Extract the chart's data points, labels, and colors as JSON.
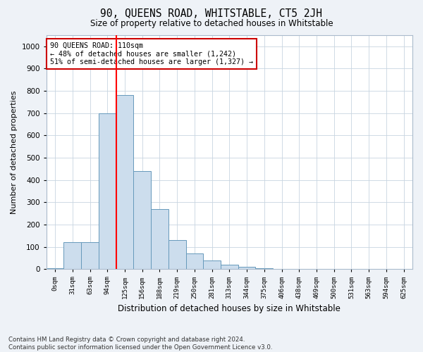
{
  "title": "90, QUEENS ROAD, WHITSTABLE, CT5 2JH",
  "subtitle": "Size of property relative to detached houses in Whitstable",
  "xlabel": "Distribution of detached houses by size in Whitstable",
  "ylabel": "Number of detached properties",
  "bar_labels": [
    "0sqm",
    "31sqm",
    "63sqm",
    "94sqm",
    "125sqm",
    "156sqm",
    "188sqm",
    "219sqm",
    "250sqm",
    "281sqm",
    "313sqm",
    "344sqm",
    "375sqm",
    "406sqm",
    "438sqm",
    "469sqm",
    "500sqm",
    "531sqm",
    "563sqm",
    "594sqm",
    "625sqm"
  ],
  "bar_values": [
    5,
    120,
    120,
    700,
    780,
    440,
    270,
    130,
    70,
    40,
    20,
    10,
    5,
    0,
    0,
    0,
    0,
    0,
    0,
    0,
    0
  ],
  "bar_color": "#ccdded",
  "bar_edgecolor": "#6699bb",
  "annotation_text": "90 QUEENS ROAD: 110sqm\n← 48% of detached houses are smaller (1,242)\n51% of semi-detached houses are larger (1,327) →",
  "annotation_box_color": "#ffffff",
  "annotation_box_edgecolor": "#cc0000",
  "ylim": [
    0,
    1050
  ],
  "yticks": [
    0,
    100,
    200,
    300,
    400,
    500,
    600,
    700,
    800,
    900,
    1000
  ],
  "footer_line1": "Contains HM Land Registry data © Crown copyright and database right 2024.",
  "footer_line2": "Contains public sector information licensed under the Open Government Licence v3.0.",
  "bg_color": "#eef2f7",
  "plot_bg_color": "#ffffff",
  "grid_color": "#c8d4e0"
}
